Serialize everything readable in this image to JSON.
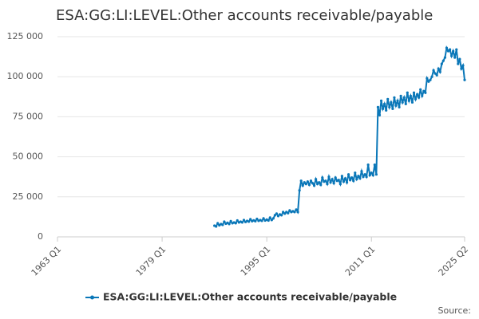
{
  "chart_data": {
    "type": "line",
    "title": "ESA:GG:LI:LEVEL:Other accounts receivable/payable",
    "source": "Source:",
    "x": [
      1987,
      1987.25,
      1987.5,
      1987.75,
      1988,
      1988.25,
      1988.5,
      1988.75,
      1989,
      1989.25,
      1989.5,
      1989.75,
      1990,
      1990.25,
      1990.5,
      1990.75,
      1991,
      1991.25,
      1991.5,
      1991.75,
      1992,
      1992.25,
      1992.5,
      1992.75,
      1993,
      1993.25,
      1993.5,
      1993.75,
      1994,
      1994.25,
      1994.5,
      1994.75,
      1995,
      1995.25,
      1995.5,
      1995.75,
      1996,
      1996.25,
      1996.5,
      1996.75,
      1997,
      1997.25,
      1997.5,
      1997.75,
      1998,
      1998.25,
      1998.5,
      1998.75,
      1999,
      1999.25,
      1999.5,
      1999.75,
      2000,
      2000.25,
      2000.5,
      2000.75,
      2001,
      2001.25,
      2001.5,
      2001.75,
      2002,
      2002.25,
      2002.5,
      2002.75,
      2003,
      2003.25,
      2003.5,
      2003.75,
      2004,
      2004.25,
      2004.5,
      2004.75,
      2005,
      2005.25,
      2005.5,
      2005.75,
      2006,
      2006.25,
      2006.5,
      2006.75,
      2007,
      2007.25,
      2007.5,
      2007.75,
      2008,
      2008.25,
      2008.5,
      2008.75,
      2009,
      2009.25,
      2009.5,
      2009.75,
      2010,
      2010.25,
      2010.5,
      2010.75,
      2011,
      2011.25,
      2011.5,
      2011.75,
      2012,
      2012.25,
      2012.5,
      2012.75,
      2013,
      2013.25,
      2013.5,
      2013.75,
      2014,
      2014.25,
      2014.5,
      2014.75,
      2015,
      2015.25,
      2015.5,
      2015.75,
      2016,
      2016.25,
      2016.5,
      2016.75,
      2017,
      2017.25,
      2017.5,
      2017.75,
      2018,
      2018.25,
      2018.5,
      2018.75,
      2019,
      2019.25,
      2019.5,
      2019.75,
      2020,
      2020.25,
      2020.5,
      2020.75,
      2021,
      2021.25,
      2021.5,
      2021.75,
      2022,
      2022.25,
      2022.5,
      2022.75,
      2023,
      2023.25,
      2023.5,
      2023.75,
      2024,
      2024.25,
      2024.5,
      2024.75,
      2025,
      2025.25
    ],
    "series": [
      {
        "name": "ESA:GG:LI:LEVEL:Other accounts receivable/payable",
        "color": "#0a77b8",
        "values": [
          7000,
          6500,
          8500,
          7200,
          8000,
          7500,
          9500,
          8200,
          8800,
          8000,
          9800,
          8500,
          9000,
          8500,
          10200,
          9000,
          9500,
          9000,
          10500,
          9300,
          10000,
          9500,
          11000,
          9800,
          10300,
          9800,
          11200,
          10000,
          10500,
          10000,
          11500,
          10200,
          10800,
          10200,
          12000,
          10500,
          11500,
          13500,
          14500,
          13000,
          14000,
          13500,
          15500,
          14500,
          15500,
          14800,
          16500,
          15500,
          16000,
          15500,
          17000,
          15500,
          29000,
          35000,
          32000,
          34000,
          33000,
          34500,
          32500,
          35000,
          33500,
          32000,
          36000,
          33000,
          34000,
          32500,
          37000,
          34500,
          35000,
          33000,
          37500,
          34000,
          36000,
          33500,
          37000,
          35000,
          35500,
          33000,
          38000,
          34500,
          36500,
          34000,
          39000,
          35500,
          37000,
          35000,
          40000,
          36000,
          38000,
          36500,
          41000,
          37500,
          39000,
          37500,
          45000,
          38500,
          40000,
          38500,
          45000,
          39000,
          81000,
          76000,
          85000,
          80000,
          83000,
          79000,
          86000,
          81000,
          84000,
          80000,
          87000,
          82000,
          85000,
          81000,
          88000,
          84000,
          87000,
          83000,
          90000,
          85000,
          88000,
          84000,
          90000,
          86000,
          89000,
          87000,
          92000,
          88000,
          91000,
          90000,
          99000,
          97000,
          98000,
          100000,
          104000,
          102000,
          101000,
          105000,
          103000,
          108000,
          110000,
          112000,
          118000,
          116000,
          117000,
          113000,
          116000,
          112000,
          117000,
          108000,
          111000,
          105000,
          107000,
          98000
        ]
      }
    ],
    "xlim": [
      1963,
      2025.25
    ],
    "xticks": [
      {
        "value": 1963,
        "label": "1963 Q1"
      },
      {
        "value": 1979,
        "label": "1979 Q1"
      },
      {
        "value": 1995,
        "label": "1995 Q1"
      },
      {
        "value": 2011,
        "label": "2011 Q1"
      },
      {
        "value": 2025.25,
        "label": "2025 Q2"
      }
    ],
    "ylim": [
      0,
      125000
    ],
    "yticks": [
      0,
      {
        "value": 25000,
        "label": "25 000"
      },
      {
        "value": 50000,
        "label": "50 000"
      },
      {
        "value": 75000,
        "label": "75 000"
      },
      {
        "value": 100000,
        "label": "100 000"
      },
      {
        "value": 125000,
        "label": "125 000"
      }
    ],
    "grid": true
  }
}
